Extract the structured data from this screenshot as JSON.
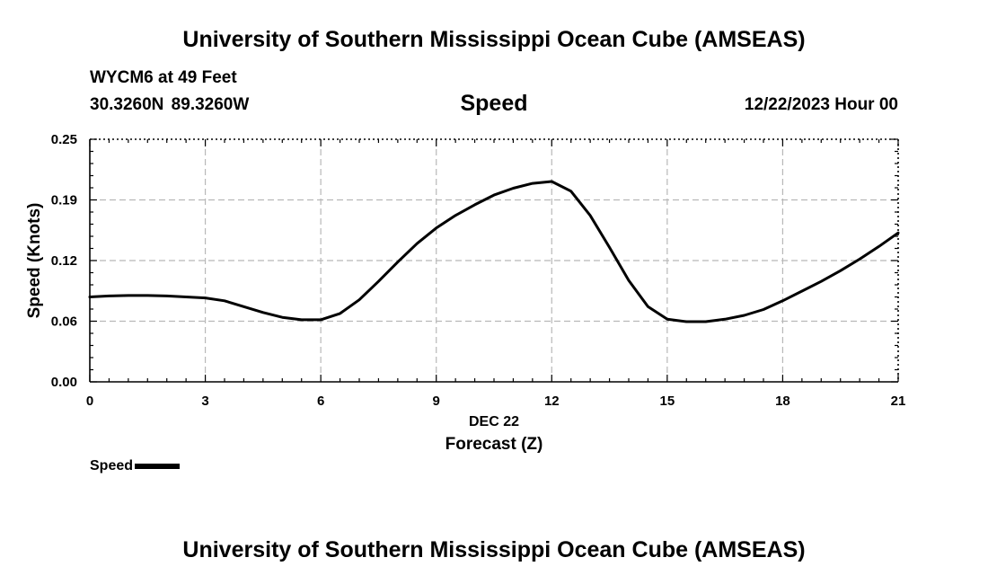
{
  "header": {
    "title": "University of Southern Mississippi Ocean Cube (AMSEAS)",
    "station": "WYCM6 at 49 Feet",
    "coordinates": "30.3260N  89.3260W",
    "variable": "Speed",
    "datetime": "12/22/2023 Hour 00"
  },
  "footer": {
    "title": "University of Southern Mississippi Ocean Cube (AMSEAS)"
  },
  "legend": {
    "label": "Speed",
    "color": "#000000"
  },
  "chart_data": {
    "type": "line",
    "xlabel": "Forecast (Z)",
    "xsublabel": "DEC 22",
    "ylabel": "Speed (Knots)",
    "xlim": [
      0,
      21
    ],
    "ylim": [
      0,
      0.25
    ],
    "xticks": [
      0,
      3,
      6,
      9,
      12,
      15,
      18,
      21
    ],
    "xtick_labels": [
      "0",
      "3",
      "6",
      "9",
      "12",
      "15",
      "18",
      "21"
    ],
    "yticks": [
      0,
      0.0625,
      0.125,
      0.1875,
      0.25
    ],
    "ytick_labels": [
      "0.00",
      "0.06",
      "0.12",
      "0.19",
      "0.25"
    ],
    "grid": true,
    "series": [
      {
        "name": "Speed",
        "color": "#000000",
        "x": [
          0,
          0.5,
          1,
          1.5,
          2,
          2.5,
          3,
          3.5,
          4,
          4.5,
          5,
          5.5,
          6,
          6.5,
          7,
          7.5,
          8,
          8.5,
          9,
          9.5,
          10,
          10.5,
          11,
          11.5,
          12,
          12.5,
          13,
          13.5,
          14,
          14.5,
          15,
          15.5,
          16,
          16.5,
          17,
          17.5,
          18,
          18.5,
          19,
          19.5,
          20,
          20.5,
          21
        ],
        "y": [
          0.0875,
          0.0885,
          0.089,
          0.089,
          0.0885,
          0.0875,
          0.0865,
          0.0835,
          0.0775,
          0.0715,
          0.0665,
          0.064,
          0.064,
          0.0705,
          0.0845,
          0.1035,
          0.1235,
          0.1425,
          0.1585,
          0.1715,
          0.1825,
          0.1925,
          0.1995,
          0.2045,
          0.2065,
          0.1965,
          0.1715,
          0.1385,
          0.1045,
          0.0775,
          0.0645,
          0.062,
          0.062,
          0.0645,
          0.0685,
          0.0745,
          0.0835,
          0.0935,
          0.1035,
          0.1145,
          0.1265,
          0.1395,
          0.1535
        ]
      }
    ]
  }
}
